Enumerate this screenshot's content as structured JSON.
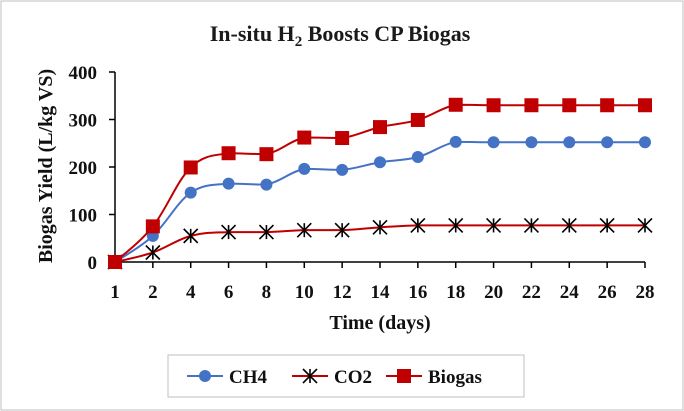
{
  "chart_data": {
    "type": "line",
    "title_main": "In-situ H",
    "title_sub": "2",
    "title_rest": " Boosts CP Biogas",
    "xlabel": "Time (days)",
    "ylabel": "Biogas Yield (L/kg VS)",
    "x_tick_labels": [
      "1",
      "2",
      "4",
      "6",
      "8",
      "10",
      "12",
      "14",
      "16",
      "18",
      "20",
      "22",
      "24",
      "26",
      "28"
    ],
    "y_ticks": [
      0,
      100,
      200,
      300,
      400
    ],
    "ylim": [
      0,
      400
    ],
    "grid": false,
    "legend_position": "bottom",
    "series": [
      {
        "name": "CH4",
        "color": "#4472C4",
        "line_color": "#4472C4",
        "marker": "circle",
        "values": [
          0,
          55,
          146,
          165,
          163,
          196,
          194,
          210,
          221,
          253,
          252,
          252,
          252,
          252,
          252
        ]
      },
      {
        "name": "CO2",
        "color": "#000000",
        "line_color": "#C00000",
        "marker": "asterisk",
        "values": [
          0,
          20,
          55,
          63,
          63,
          67,
          67,
          73,
          77,
          77,
          77,
          77,
          77,
          77,
          77
        ]
      },
      {
        "name": "Biogas",
        "color": "#C00000",
        "line_color": "#C00000",
        "marker": "square",
        "values": [
          0,
          75,
          199,
          229,
          227,
          262,
          261,
          284,
          299,
          331,
          330,
          330,
          330,
          330,
          330
        ]
      }
    ]
  }
}
